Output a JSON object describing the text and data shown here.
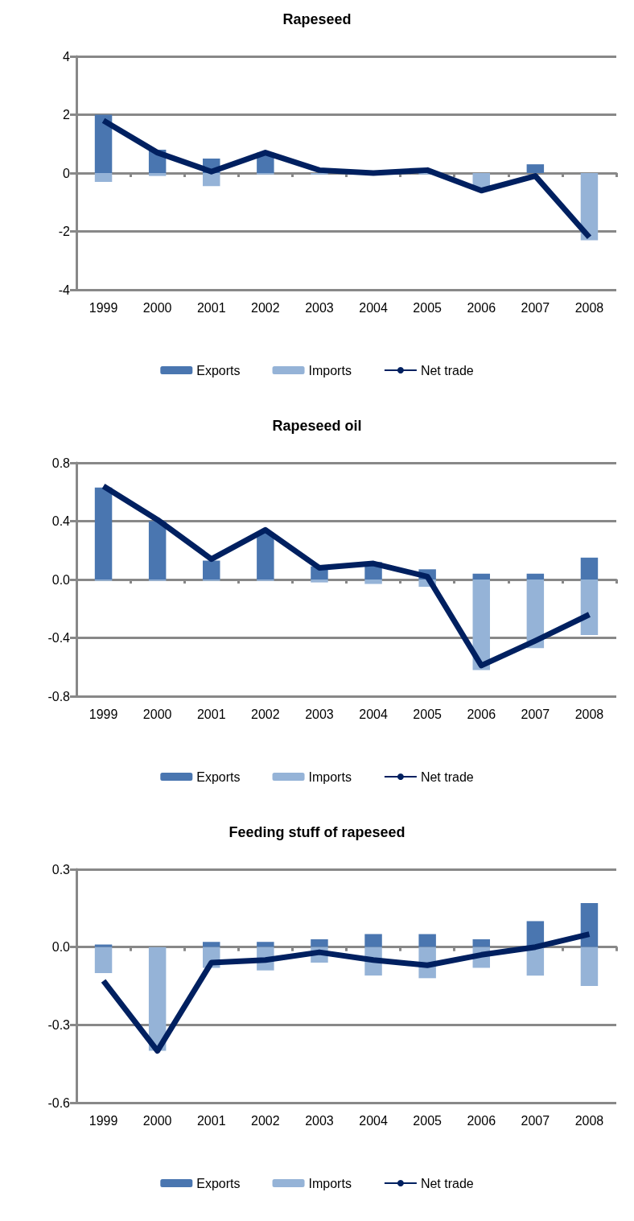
{
  "chart_data": [
    {
      "type": "bar",
      "title": "Rapeseed",
      "categories": [
        "1999",
        "2000",
        "2001",
        "2002",
        "2003",
        "2004",
        "2005",
        "2006",
        "2007",
        "2008"
      ],
      "stacked": true,
      "legend": "bottom",
      "grid": "y",
      "ylim": [
        -4,
        4
      ],
      "yticks": [
        -4,
        -2,
        0,
        2,
        4
      ],
      "series": [
        {
          "name": "Exports",
          "color": "#4a76b0",
          "values": [
            2.0,
            0.8,
            0.5,
            0.7,
            null,
            null,
            null,
            0,
            0.3,
            0
          ]
        },
        {
          "name": "Imports",
          "color": "#95b3d7",
          "values": [
            -0.3,
            -0.1,
            -0.45,
            -0.05,
            -0.05,
            null,
            -0.05,
            -0.5,
            null,
            -2.3
          ]
        },
        {
          "name": "Net trade",
          "type": "line",
          "color": "#002060",
          "values": [
            1.8,
            0.7,
            0.05,
            0.7,
            0.1,
            0.0,
            0.1,
            -0.6,
            -0.1,
            -2.2
          ]
        }
      ]
    },
    {
      "type": "bar",
      "title": "Rapeseed oil",
      "categories": [
        "1999",
        "2000",
        "2001",
        "2002",
        "2003",
        "2004",
        "2005",
        "2006",
        "2007",
        "2008"
      ],
      "stacked": true,
      "legend": "bottom",
      "grid": "y",
      "ylim": [
        -0.8,
        0.8
      ],
      "yticks": [
        {
          "value": -0.8,
          "label": "-0.8"
        },
        {
          "value": -0.4,
          "label": "-0.4"
        },
        {
          "value": 0,
          "label": "0.0"
        },
        {
          "value": 0.4,
          "label": "0.4"
        },
        {
          "value": 0.8,
          "label": "0.8"
        }
      ],
      "series": [
        {
          "name": "Exports",
          "color": "#4a76b0",
          "values": [
            0.63,
            0.4,
            0.13,
            0.32,
            0.09,
            0.12,
            0.07,
            0.04,
            0.04,
            0.15
          ]
        },
        {
          "name": "Imports",
          "color": "#95b3d7",
          "values": [
            -0.01,
            -0.01,
            -0.01,
            -0.01,
            -0.02,
            -0.03,
            -0.05,
            -0.62,
            -0.47,
            -0.38
          ]
        },
        {
          "name": "Net trade",
          "type": "line",
          "color": "#002060",
          "values": [
            0.64,
            0.41,
            0.14,
            0.34,
            0.08,
            0.11,
            0.02,
            -0.59,
            -0.42,
            -0.24
          ]
        }
      ]
    },
    {
      "type": "bar",
      "title": "Feeding stuff of rapeseed",
      "categories": [
        "1999",
        "2000",
        "2001",
        "2002",
        "2003",
        "2004",
        "2005",
        "2006",
        "2007",
        "2008"
      ],
      "stacked": true,
      "legend": "bottom",
      "grid": "y",
      "ylim": [
        -0.6,
        0.3
      ],
      "yticks": [
        {
          "value": -0.6,
          "label": "-0.6"
        },
        {
          "value": -0.3,
          "label": "-0.3"
        },
        {
          "value": 0,
          "label": "0.0"
        },
        {
          "value": 0.3,
          "label": "0.3"
        }
      ],
      "series": [
        {
          "name": "Exports",
          "color": "#4a76b0",
          "values": [
            0.01,
            0,
            0.02,
            0.02,
            0.03,
            0.05,
            0.05,
            0.03,
            0.1,
            0.17
          ]
        },
        {
          "name": "Imports",
          "color": "#95b3d7",
          "values": [
            -0.1,
            -0.4,
            -0.08,
            -0.09,
            -0.06,
            -0.11,
            -0.12,
            -0.08,
            -0.11,
            -0.15
          ]
        },
        {
          "name": "Net trade",
          "type": "line",
          "color": "#002060",
          "values": [
            -0.13,
            -0.4,
            -0.06,
            -0.05,
            -0.02,
            -0.05,
            -0.07,
            -0.03,
            0.0,
            0.05
          ]
        }
      ]
    }
  ]
}
